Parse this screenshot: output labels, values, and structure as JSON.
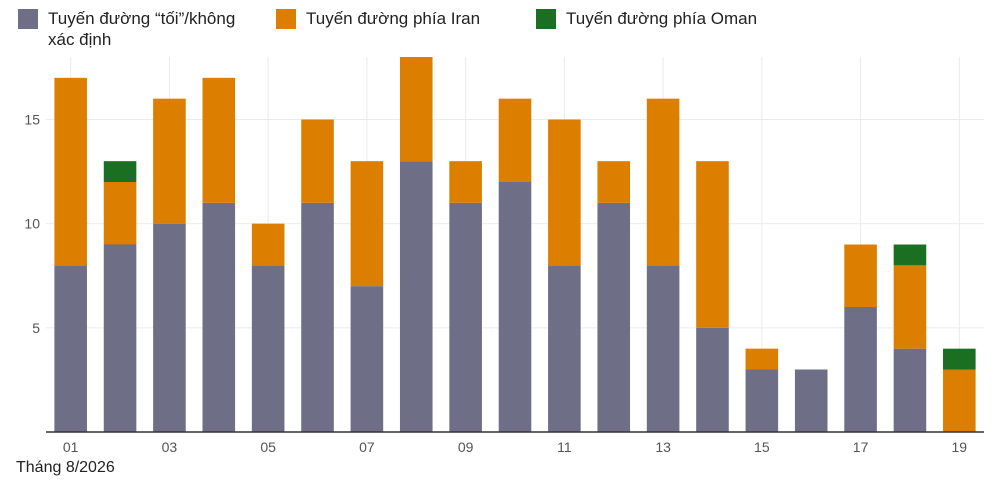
{
  "legend": [
    {
      "label": "Tuyến đường “tối”/không xác định",
      "color": "#6e6e87"
    },
    {
      "label": "Tuyến đường phía Iran",
      "color": "#dc7f00"
    },
    {
      "label": "Tuyến đường phía Oman",
      "color": "#1a6f22"
    }
  ],
  "date_label": "Tháng 8/2026",
  "chart_data": {
    "type": "bar",
    "stacked": true,
    "categories": [
      "01",
      "02",
      "03",
      "04",
      "05",
      "06",
      "07",
      "08",
      "09",
      "10",
      "11",
      "12",
      "13",
      "14",
      "15",
      "16",
      "17",
      "18",
      "19"
    ],
    "x_tick_labels": [
      "01",
      "03",
      "05",
      "07",
      "09",
      "11",
      "13",
      "15",
      "17",
      "19"
    ],
    "series": [
      {
        "name": "Tuyến đường “tối”/không xác định",
        "color": "#6e6e87",
        "values": [
          8,
          9,
          10,
          11,
          8,
          11,
          7,
          13,
          11,
          12,
          8,
          11,
          8,
          5,
          3,
          3,
          6,
          4,
          0
        ]
      },
      {
        "name": "Tuyến đường phía Iran",
        "color": "#dc7f00",
        "values": [
          9,
          3,
          6,
          6,
          2,
          4,
          6,
          5,
          2,
          4,
          7,
          2,
          8,
          8,
          1,
          0,
          3,
          4,
          3
        ]
      },
      {
        "name": "Tuyến đường phía Oman",
        "color": "#1a6f22",
        "values": [
          0,
          1,
          0,
          0,
          0,
          0,
          0,
          0,
          0,
          0,
          0,
          0,
          0,
          0,
          0,
          0,
          0,
          1,
          1
        ]
      }
    ],
    "y_ticks": [
      5,
      10,
      15
    ],
    "ylim": [
      0,
      18
    ],
    "grid": true,
    "legend_position": "top-left",
    "xlabel": "Tháng 8/2026",
    "ylabel": ""
  }
}
